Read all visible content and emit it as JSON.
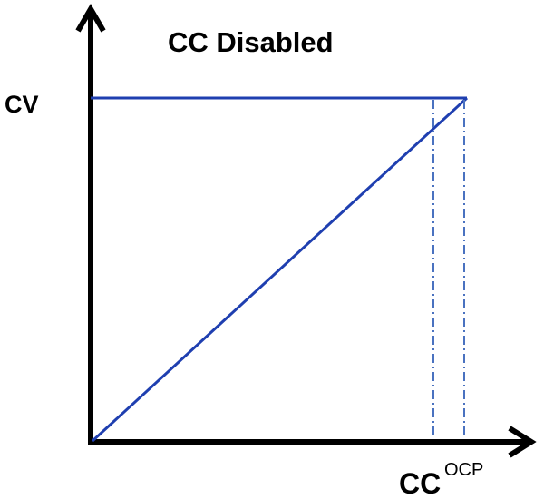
{
  "title": "CC Disabled",
  "y_label": "CV",
  "x_label": "CC",
  "x_label_superscript": "OCP"
}
